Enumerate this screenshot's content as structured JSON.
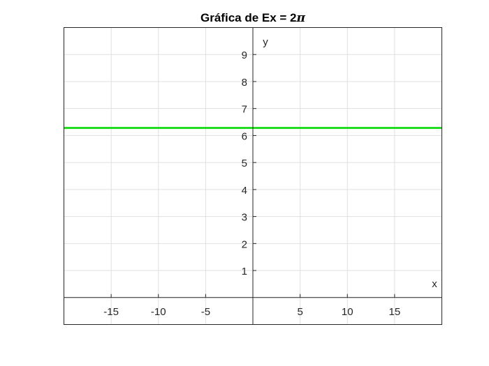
{
  "chart_data": {
    "type": "line",
    "title": "Gráfica de Ex = 2",
    "title_symbol": "π",
    "xlabel": "x",
    "ylabel": "y",
    "xlim": [
      -20,
      20
    ],
    "ylim": [
      -1,
      10
    ],
    "x_ticks": [
      -15,
      -10,
      -5,
      5,
      10,
      15
    ],
    "x_tick_labels": [
      "-15",
      "-10",
      "-5",
      "5",
      "10",
      "15"
    ],
    "y_ticks": [
      1,
      2,
      3,
      4,
      5,
      6,
      7,
      8,
      9
    ],
    "y_tick_labels": [
      "1",
      "2",
      "3",
      "4",
      "5",
      "6",
      "7",
      "8",
      "9"
    ],
    "axis_location": "origin",
    "grid": true,
    "series": [
      {
        "x": [
          -20,
          20
        ],
        "y": [
          6.2832,
          6.2832
        ],
        "color": "#22dd22"
      }
    ]
  }
}
